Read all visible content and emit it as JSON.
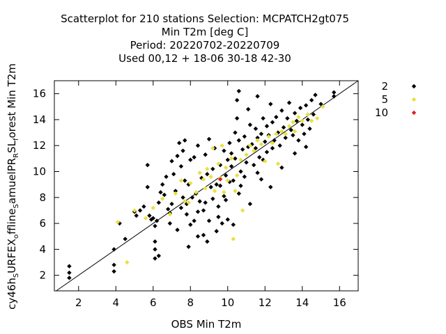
{
  "chart_data": {
    "type": "scatter",
    "title_lines": [
      "Scatterplot for  210 stations Selection: MCPATCH2gt075",
      "Min T2m [deg C]",
      "Period: 20220702-20220709",
      "Used  00,12  + 18-06 30-18 42-30"
    ],
    "xlabel": "OBS Min T2m",
    "ylabel_parts": [
      "cy46h",
      "S",
      "URFEX",
      "o",
      "ffline",
      "S",
      "amuelPR",
      "R",
      "SL",
      "f",
      "orest Min T2m"
    ],
    "xlim": [
      0.7,
      17.0
    ],
    "ylim": [
      0.8,
      17.0
    ],
    "xticks": [
      2,
      4,
      6,
      8,
      10,
      12,
      14,
      16
    ],
    "yticks": [
      2,
      4,
      6,
      8,
      10,
      12,
      14,
      16
    ],
    "xtick_labels": [
      "2",
      "4",
      "6",
      "8",
      "10",
      "12",
      "14",
      "16"
    ],
    "ytick_labels": [
      "2",
      "4",
      "6",
      "8",
      "10",
      "12",
      "14",
      "16"
    ],
    "legend_position": "right",
    "reference_line": "y = x",
    "series": [
      {
        "name": "2",
        "color": "#000000",
        "points": [
          [
            1.5,
            2.7
          ],
          [
            1.5,
            2.2
          ],
          [
            1.5,
            1.8
          ],
          [
            3.9,
            2.8
          ],
          [
            3.9,
            2.3
          ],
          [
            3.9,
            4.0
          ],
          [
            4.2,
            6.0
          ],
          [
            4.5,
            4.8
          ],
          [
            5.0,
            6.9
          ],
          [
            5.1,
            6.6
          ],
          [
            5.3,
            7.0
          ],
          [
            5.5,
            7.3
          ],
          [
            5.7,
            8.8
          ],
          [
            5.8,
            6.6
          ],
          [
            5.7,
            10.5
          ],
          [
            5.9,
            6.3
          ],
          [
            6.0,
            6.4
          ],
          [
            6.1,
            5.8
          ],
          [
            6.1,
            4.6
          ],
          [
            6.1,
            4.0
          ],
          [
            6.2,
            6.2
          ],
          [
            6.3,
            7.6
          ],
          [
            6.4,
            8.4
          ],
          [
            6.5,
            9.0
          ],
          [
            6.6,
            8.2
          ],
          [
            6.7,
            9.6
          ],
          [
            6.8,
            7.1
          ],
          [
            6.9,
            6.0
          ],
          [
            7.0,
            7.5
          ],
          [
            7.1,
            9.8
          ],
          [
            7.2,
            8.5
          ],
          [
            7.3,
            11.2
          ],
          [
            7.4,
            12.2
          ],
          [
            7.5,
            10.4
          ],
          [
            7.6,
            8.0
          ],
          [
            7.7,
            9.3
          ],
          [
            7.7,
            12.4
          ],
          [
            7.8,
            7.5
          ],
          [
            7.8,
            6.7
          ],
          [
            7.9,
            4.2
          ],
          [
            7.9,
            9.0
          ],
          [
            8.0,
            5.9
          ],
          [
            8.0,
            10.9
          ],
          [
            8.1,
            8.0
          ],
          [
            8.2,
            11.1
          ],
          [
            8.3,
            8.3
          ],
          [
            8.4,
            5.0
          ],
          [
            8.4,
            6.9
          ],
          [
            8.5,
            7.7
          ],
          [
            8.6,
            9.5
          ],
          [
            8.7,
            7.0
          ],
          [
            8.7,
            5.1
          ],
          [
            8.8,
            11.3
          ],
          [
            8.9,
            9.8
          ],
          [
            9.0,
            6.2
          ],
          [
            9.1,
            8.8
          ],
          [
            9.2,
            7.9
          ],
          [
            9.2,
            10.2
          ],
          [
            9.3,
            11.8
          ],
          [
            9.4,
            9.0
          ],
          [
            9.4,
            5.4
          ],
          [
            9.5,
            7.3
          ],
          [
            9.6,
            8.9
          ],
          [
            9.6,
            10.5
          ],
          [
            9.7,
            6.0
          ],
          [
            9.8,
            11.6
          ],
          [
            9.8,
            8.1
          ],
          [
            9.9,
            9.7
          ],
          [
            10.0,
            10.9
          ],
          [
            10.0,
            6.3
          ],
          [
            10.1,
            9.2
          ],
          [
            10.1,
            12.2
          ],
          [
            10.2,
            10.4
          ],
          [
            10.2,
            11.4
          ],
          [
            10.3,
            9.3
          ],
          [
            10.4,
            11.0
          ],
          [
            10.4,
            13.0
          ],
          [
            10.5,
            14.1
          ],
          [
            10.5,
            15.5
          ],
          [
            10.6,
            16.2
          ],
          [
            10.6,
            12.4
          ],
          [
            10.7,
            10.0
          ],
          [
            10.7,
            8.9
          ],
          [
            10.8,
            11.7
          ],
          [
            10.9,
            12.7
          ],
          [
            10.9,
            9.6
          ],
          [
            11.0,
            10.7
          ],
          [
            11.1,
            11.9
          ],
          [
            11.1,
            14.8
          ],
          [
            11.2,
            13.6
          ],
          [
            11.2,
            7.5
          ],
          [
            11.3,
            12.1
          ],
          [
            11.4,
            10.5
          ],
          [
            11.5,
            11.8
          ],
          [
            11.5,
            13.3
          ],
          [
            11.6,
            12.6
          ],
          [
            11.6,
            15.8
          ],
          [
            11.7,
            11.1
          ],
          [
            11.8,
            12.9
          ],
          [
            11.9,
            10.9
          ],
          [
            11.9,
            14.1
          ],
          [
            12.0,
            12.3
          ],
          [
            12.1,
            13.5
          ],
          [
            12.1,
            11.5
          ],
          [
            12.2,
            12.8
          ],
          [
            12.3,
            15.2
          ],
          [
            12.4,
            13.8
          ],
          [
            12.4,
            11.8
          ],
          [
            12.5,
            12.4
          ],
          [
            12.6,
            14.2
          ],
          [
            12.7,
            13.0
          ],
          [
            12.8,
            12.0
          ],
          [
            12.9,
            14.7
          ],
          [
            13.0,
            13.4
          ],
          [
            13.1,
            12.6
          ],
          [
            13.2,
            14.1
          ],
          [
            13.3,
            15.3
          ],
          [
            13.4,
            13.2
          ],
          [
            13.5,
            12.8
          ],
          [
            13.6,
            14.5
          ],
          [
            13.7,
            13.9
          ],
          [
            13.8,
            12.4
          ],
          [
            13.9,
            14.9
          ],
          [
            14.0,
            13.6
          ],
          [
            14.1,
            12.9
          ],
          [
            14.2,
            15.1
          ],
          [
            14.3,
            14.0
          ],
          [
            14.4,
            13.3
          ],
          [
            14.5,
            15.5
          ],
          [
            14.6,
            14.4
          ],
          [
            14.7,
            15.9
          ],
          [
            15.0,
            15.2
          ],
          [
            15.7,
            16.1
          ],
          [
            15.7,
            15.8
          ],
          [
            9.5,
            6.5
          ],
          [
            8.2,
            6.2
          ],
          [
            6.9,
            6.8
          ],
          [
            7.3,
            5.5
          ],
          [
            8.9,
            4.6
          ],
          [
            10.3,
            5.9
          ],
          [
            11.8,
            9.4
          ],
          [
            12.3,
            8.8
          ],
          [
            12.9,
            10.3
          ],
          [
            13.6,
            11.4
          ],
          [
            14.2,
            11.9
          ],
          [
            7.0,
            10.8
          ],
          [
            7.6,
            11.6
          ],
          [
            8.4,
            12.0
          ],
          [
            9.0,
            12.5
          ],
          [
            6.3,
            3.5
          ],
          [
            6.1,
            3.3
          ],
          [
            7.5,
            7.2
          ],
          [
            8.8,
            7.6
          ],
          [
            9.9,
            7.8
          ],
          [
            10.6,
            8.3
          ],
          [
            11.6,
            9.9
          ]
        ]
      },
      {
        "name": "5",
        "color": "#e8e040",
        "points": [
          [
            4.1,
            6.1
          ],
          [
            4.6,
            3.0
          ],
          [
            5.0,
            7.0
          ],
          [
            5.6,
            6.4
          ],
          [
            6.0,
            7.2
          ],
          [
            6.5,
            7.9
          ],
          [
            6.9,
            6.7
          ],
          [
            7.2,
            8.3
          ],
          [
            7.5,
            9.3
          ],
          [
            7.7,
            7.7
          ],
          [
            8.0,
            9.1
          ],
          [
            8.3,
            8.4
          ],
          [
            8.5,
            9.9
          ],
          [
            8.8,
            8.7
          ],
          [
            8.9,
            10.2
          ],
          [
            9.1,
            9.6
          ],
          [
            9.3,
            8.5
          ],
          [
            9.5,
            10.6
          ],
          [
            9.6,
            9.5
          ],
          [
            9.8,
            8.4
          ],
          [
            9.9,
            10.3
          ],
          [
            10.0,
            9.3
          ],
          [
            10.2,
            11.0
          ],
          [
            10.3,
            4.8
          ],
          [
            10.4,
            8.5
          ],
          [
            10.5,
            9.7
          ],
          [
            10.7,
            10.9
          ],
          [
            10.8,
            7.0
          ],
          [
            11.0,
            11.3
          ],
          [
            11.2,
            12.0
          ],
          [
            11.4,
            11.6
          ],
          [
            11.6,
            12.4
          ],
          [
            11.8,
            12.1
          ],
          [
            12.0,
            10.8
          ],
          [
            12.2,
            12.7
          ],
          [
            12.4,
            12.2
          ],
          [
            12.6,
            12.9
          ],
          [
            12.7,
            10.6
          ],
          [
            12.9,
            13.1
          ],
          [
            13.1,
            12.9
          ],
          [
            13.3,
            13.5
          ],
          [
            13.5,
            13.8
          ],
          [
            13.6,
            13.1
          ],
          [
            13.8,
            14.2
          ],
          [
            14.0,
            13.9
          ],
          [
            14.3,
            14.4
          ],
          [
            14.5,
            13.9
          ],
          [
            14.8,
            14.1
          ],
          [
            15.1,
            15.0
          ],
          [
            9.7,
            12.0
          ],
          [
            9.2,
            11.8
          ],
          [
            8.7,
            9.4
          ],
          [
            7.9,
            7.6
          ]
        ]
      },
      {
        "name": "10",
        "color": "#dd2222",
        "points": [
          [
            9.6,
            9.4
          ]
        ]
      }
    ]
  }
}
